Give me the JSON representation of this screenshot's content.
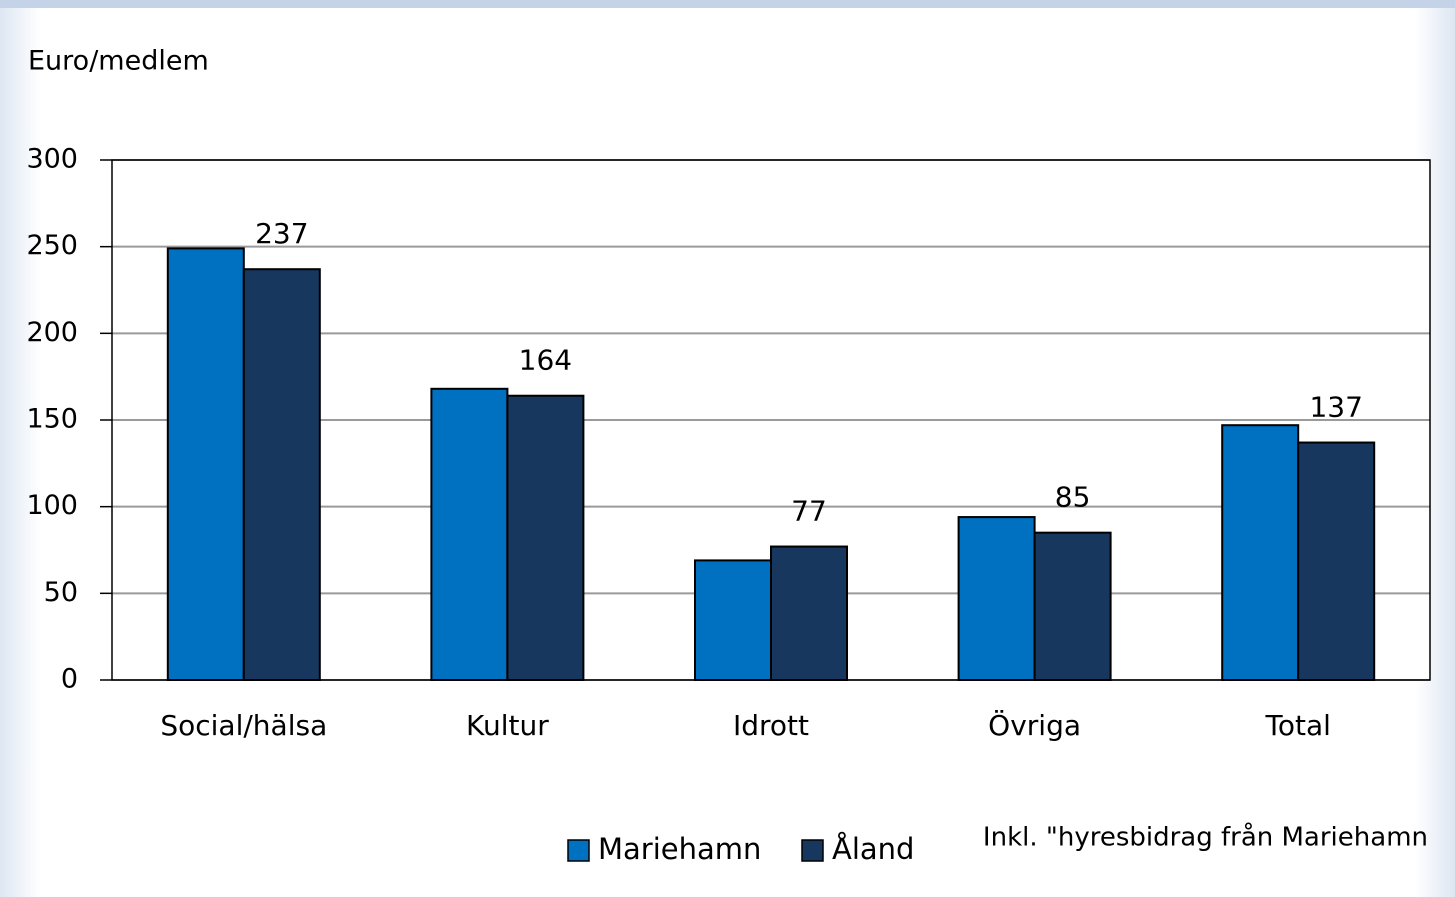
{
  "chart_data": {
    "type": "bar",
    "y_label": "Euro/medlem",
    "categories": [
      "Social/hälsa",
      "Kultur",
      "Idrott",
      "Övriga",
      "Total"
    ],
    "series": [
      {
        "name": "Mariehamn",
        "color": "#0070c0",
        "values": [
          249,
          168,
          69,
          94,
          147
        ],
        "data_labels": false
      },
      {
        "name": "Åland",
        "color": "#17375e",
        "values": [
          237,
          164,
          77,
          85,
          137
        ],
        "data_labels": true
      }
    ],
    "ylim": [
      0,
      300
    ],
    "yticks": [
      0,
      50,
      100,
      150,
      200,
      250,
      300
    ],
    "grid": true,
    "annotation": "Inkl. \"hyresbidrag från Mariehamn",
    "legend": "bottom"
  }
}
